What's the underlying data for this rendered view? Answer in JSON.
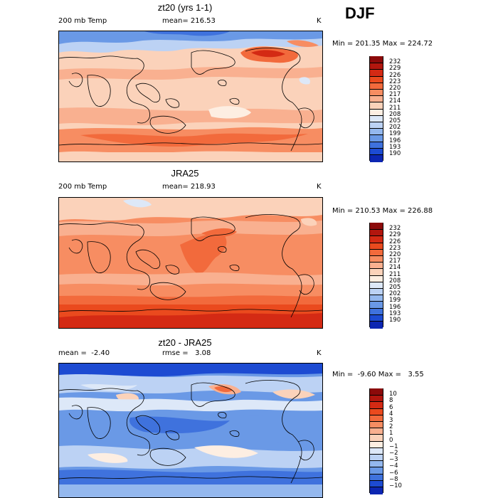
{
  "season": "DJF",
  "units": "K",
  "panels": [
    {
      "title": "zt20 (yrs 1-1)",
      "left_label": "200 mb Temp",
      "center_label": "mean= 216.53",
      "right_label": "K",
      "minmax": "Min = 201.35 Max = 224.72",
      "colorbar": {
        "labels": [
          "232",
          "229",
          "226",
          "223",
          "220",
          "217",
          "214",
          "211",
          "208",
          "205",
          "202",
          "199",
          "196",
          "193",
          "190"
        ],
        "colors": [
          "#8c0a0a",
          "#b2160e",
          "#d42a14",
          "#ea4a1e",
          "#f26a3c",
          "#f78d62",
          "#f9b090",
          "#fbd2ba",
          "#fdeee2",
          "#dde8f8",
          "#bcd2f4",
          "#94b8ee",
          "#6a99e6",
          "#3f72dd",
          "#1d4bd2",
          "#0c26b2"
        ]
      }
    },
    {
      "title": "JRA25",
      "left_label": "200 mb Temp",
      "center_label": "mean= 218.93",
      "right_label": "K",
      "minmax": "Min = 210.53 Max = 226.88",
      "colorbar": {
        "labels": [
          "232",
          "229",
          "226",
          "223",
          "220",
          "217",
          "214",
          "211",
          "208",
          "205",
          "202",
          "199",
          "196",
          "193",
          "190"
        ],
        "colors": [
          "#8c0a0a",
          "#b2160e",
          "#d42a14",
          "#ea4a1e",
          "#f26a3c",
          "#f78d62",
          "#f9b090",
          "#fbd2ba",
          "#fdeee2",
          "#dde8f8",
          "#bcd2f4",
          "#94b8ee",
          "#6a99e6",
          "#3f72dd",
          "#1d4bd2",
          "#0c26b2"
        ]
      }
    },
    {
      "title": "zt20 - JRA25",
      "left_label": "mean =  -2.40",
      "center_label": "rmse =   3.08",
      "right_label": "K",
      "minmax": "Min =  -9.60 Max =   3.55",
      "colorbar": {
        "labels": [
          "10",
          "8",
          "6",
          "4",
          "3",
          "2",
          "1",
          "0",
          "−1",
          "−2",
          "−3",
          "−4",
          "−6",
          "−8",
          "−10"
        ],
        "colors": [
          "#8c0a0a",
          "#b2160e",
          "#d42a14",
          "#ea4a1e",
          "#f26a3c",
          "#f78d62",
          "#f9b090",
          "#fbd2ba",
          "#fdeee2",
          "#dde8f8",
          "#bcd2f4",
          "#94b8ee",
          "#6a99e6",
          "#3f72dd",
          "#1d4bd2",
          "#0c26b2"
        ]
      }
    }
  ]
}
